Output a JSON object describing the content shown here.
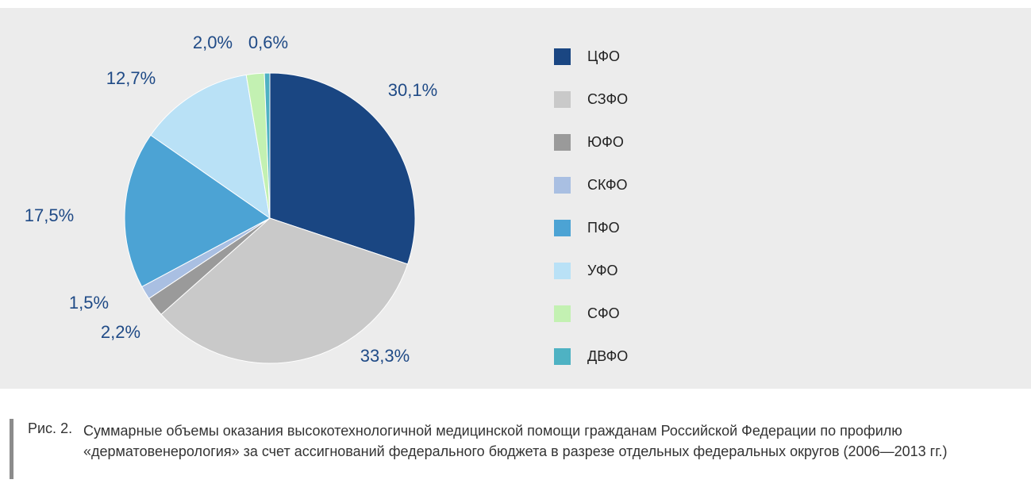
{
  "chart_data": {
    "type": "pie",
    "categories": [
      "ЦФО",
      "СЗФО",
      "ЮФО",
      "СКФО",
      "ПФО",
      "УФО",
      "СФО",
      "ДВФО"
    ],
    "values": [
      30.1,
      33.3,
      2.2,
      1.5,
      17.5,
      12.7,
      2.0,
      0.6
    ],
    "value_labels": [
      "30,1%",
      "33,3%",
      "2,2%",
      "1,5%",
      "17,5%",
      "12,7%",
      "2,0%",
      "0,6%"
    ],
    "colors": [
      "#1a4682",
      "#c9c9c9",
      "#9a9a9a",
      "#a9bfe2",
      "#4ca3d4",
      "#b9e1f6",
      "#c3f1b2",
      "#4eb2c3"
    ],
    "legend": "right",
    "figure_label": "Рис. 2.",
    "caption": "Суммарные объемы оказания высокотехнологичной медицинской помощи гражданам Российской Федерации по профилю «дерматовенерология» за счет ассигнований федерального бюджета в разрезе отдельных федеральных округов (2006—2013 гг.)"
  }
}
